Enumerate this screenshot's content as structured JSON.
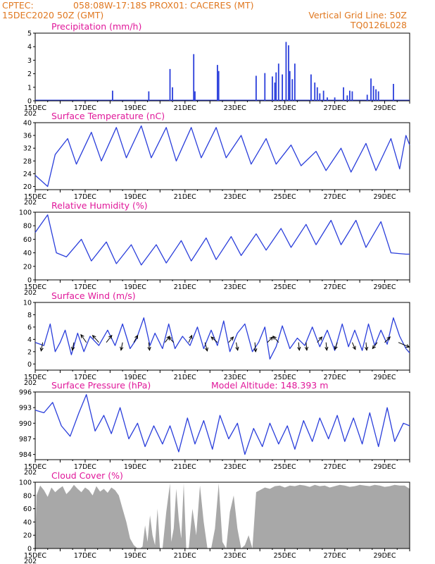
{
  "header": {
    "source": "CPTEC:",
    "location": "058:08W-17:18S   PROX01: CACERES (MT)",
    "run_date": "15DEC2020 50Z (GMT)",
    "grid_note": "Vertical Grid Line: 50Z",
    "product_code": "TQ0126L028"
  },
  "time_axis": {
    "labels": [
      "15DEC",
      "17DEC",
      "19DEC",
      "21DEC",
      "23DEC",
      "25DEC",
      "27DEC",
      "29DEC"
    ],
    "label_days": [
      0,
      2,
      4,
      6,
      8,
      10,
      12,
      14
    ],
    "start_day": 0,
    "end_day": 15,
    "year_fragment": "202"
  },
  "colors": {
    "series_line": "#2a3edb",
    "bar": "#2a3edb",
    "cloud_fill": "#a8a8a8",
    "header_text": "#e07820",
    "panel_title": "#e0189a",
    "axis": "#000000"
  },
  "chart_data": [
    {
      "id": "precipitation",
      "type": "bar",
      "title": "Precipitation (mm/h)",
      "ylim": [
        0,
        5
      ],
      "yticks": [
        0,
        1,
        2,
        3,
        4,
        5
      ],
      "bars": [
        [
          3.1,
          0.75
        ],
        [
          4.55,
          0.7
        ],
        [
          5.4,
          2.35
        ],
        [
          5.5,
          1.0
        ],
        [
          6.35,
          3.45
        ],
        [
          6.4,
          0.7
        ],
        [
          7.3,
          2.65
        ],
        [
          7.35,
          2.2
        ],
        [
          8.85,
          1.85
        ],
        [
          9.2,
          2.05
        ],
        [
          9.5,
          1.8
        ],
        [
          9.6,
          1.35
        ],
        [
          9.65,
          2.1
        ],
        [
          9.75,
          2.75
        ],
        [
          9.9,
          1.95
        ],
        [
          10.05,
          4.35
        ],
        [
          10.15,
          4.1
        ],
        [
          10.2,
          2.2
        ],
        [
          10.3,
          1.6
        ],
        [
          10.4,
          2.75
        ],
        [
          11.05,
          1.95
        ],
        [
          11.2,
          1.35
        ],
        [
          11.3,
          1.0
        ],
        [
          11.4,
          0.55
        ],
        [
          11.55,
          0.75
        ],
        [
          11.7,
          0.25
        ],
        [
          12.0,
          0.25
        ],
        [
          12.35,
          1.0
        ],
        [
          12.5,
          0.4
        ],
        [
          12.6,
          0.75
        ],
        [
          12.7,
          0.7
        ],
        [
          13.3,
          0.45
        ],
        [
          13.45,
          1.65
        ],
        [
          13.55,
          1.1
        ],
        [
          13.65,
          0.85
        ],
        [
          13.75,
          0.7
        ],
        [
          14.35,
          1.25
        ]
      ]
    },
    {
      "id": "temperature",
      "type": "line",
      "title": "Surface Temperature (nC)",
      "ylim": [
        19,
        40
      ],
      "yticks": [
        20,
        24,
        28,
        32,
        36,
        40
      ],
      "x": [
        0,
        0.5,
        0.8,
        1.3,
        1.65,
        2.25,
        2.65,
        3.25,
        3.65,
        4.25,
        4.65,
        5.25,
        5.65,
        6.25,
        6.65,
        7.25,
        7.65,
        8.25,
        8.65,
        9.25,
        9.65,
        10.25,
        10.65,
        11.25,
        11.65,
        12.25,
        12.65,
        13.25,
        13.65,
        14.25,
        14.6,
        14.85,
        15
      ],
      "y": [
        23.5,
        20.0,
        30.0,
        35.0,
        27.0,
        37.0,
        28.0,
        38.5,
        29.0,
        39.0,
        29.0,
        38.5,
        28.0,
        38.5,
        29.0,
        38.5,
        29.0,
        36.0,
        27.0,
        35.0,
        27.0,
        33.0,
        26.5,
        31.0,
        25.0,
        32.0,
        24.5,
        33.5,
        25.0,
        35.0,
        25.5,
        36.0,
        33.0
      ]
    },
    {
      "id": "humidity",
      "type": "line",
      "title": "Relative Humidity (%)",
      "ylim": [
        0,
        100
      ],
      "yticks": [
        0,
        20,
        40,
        60,
        80,
        100
      ],
      "x": [
        0,
        0.5,
        0.85,
        1.25,
        1.85,
        2.25,
        2.85,
        3.25,
        3.85,
        4.25,
        4.85,
        5.25,
        5.85,
        6.25,
        6.85,
        7.25,
        7.85,
        8.25,
        8.85,
        9.25,
        9.85,
        10.25,
        10.85,
        11.25,
        11.85,
        12.25,
        12.85,
        13.25,
        13.85,
        14.25,
        14.85,
        15
      ],
      "y": [
        70,
        96,
        40,
        34,
        60,
        28,
        56,
        24,
        52,
        22,
        52,
        25,
        58,
        28,
        62,
        30,
        64,
        36,
        68,
        44,
        76,
        48,
        82,
        52,
        88,
        52,
        88,
        48,
        86,
        40,
        38,
        38
      ]
    },
    {
      "id": "wind",
      "type": "line",
      "title": "Surface Wind (m/s)",
      "ylim": [
        -1,
        10
      ],
      "yticks": [
        0,
        2,
        4,
        6,
        8,
        10
      ],
      "x": [
        0,
        0.35,
        0.6,
        0.8,
        1.0,
        1.2,
        1.45,
        1.7,
        1.95,
        2.2,
        2.55,
        2.9,
        3.2,
        3.5,
        3.8,
        4.05,
        4.35,
        4.6,
        4.8,
        5.1,
        5.35,
        5.6,
        5.9,
        6.2,
        6.5,
        6.75,
        7.05,
        7.3,
        7.55,
        7.8,
        8.1,
        8.4,
        8.7,
        8.95,
        9.2,
        9.4,
        9.65,
        9.9,
        10.2,
        10.5,
        10.8,
        11.1,
        11.4,
        11.7,
        12.0,
        12.3,
        12.55,
        12.8,
        13.1,
        13.35,
        13.6,
        13.85,
        14.1,
        14.35,
        14.6,
        14.85,
        15
      ],
      "y": [
        3.5,
        3.0,
        6.5,
        2.0,
        3.5,
        5.5,
        1.5,
        5.0,
        2.0,
        4.5,
        3.0,
        5.5,
        3.0,
        6.5,
        2.5,
        4.0,
        7.5,
        3.0,
        5.0,
        2.5,
        6.5,
        2.5,
        4.5,
        3.0,
        6.0,
        2.5,
        5.5,
        3.0,
        7.0,
        2.0,
        5.0,
        6.5,
        2.0,
        3.5,
        6.0,
        0.8,
        2.8,
        6.2,
        2.5,
        4.2,
        3.0,
        6.0,
        2.8,
        5.5,
        2.2,
        6.5,
        2.8,
        5.5,
        2.2,
        6.5,
        3.0,
        5.5,
        3.2,
        7.5,
        4.5,
        2.5,
        1.8
      ],
      "vectors": [
        [
          0.3,
          -0.1,
          -0.55
        ],
        [
          1.55,
          -0.1,
          -0.5
        ],
        [
          2.05,
          -0.35,
          0.5
        ],
        [
          2.55,
          -0.4,
          0.45
        ],
        [
          2.85,
          0.35,
          0.45
        ],
        [
          3.5,
          -0.1,
          -0.5
        ],
        [
          3.95,
          0.25,
          0.45
        ],
        [
          4.55,
          0.05,
          -0.5
        ],
        [
          5.2,
          0.3,
          0.4
        ],
        [
          5.55,
          -0.35,
          0.35
        ],
        [
          6.15,
          0.2,
          0.45
        ],
        [
          6.8,
          0.15,
          -0.55
        ],
        [
          7.3,
          -0.4,
          0.35
        ],
        [
          7.75,
          0.3,
          0.35
        ],
        [
          8.05,
          0.1,
          -0.5
        ],
        [
          8.8,
          0.05,
          -0.6
        ],
        [
          9.3,
          0.35,
          0.35
        ],
        [
          9.75,
          -0.35,
          0.4
        ],
        [
          10.55,
          0.05,
          -0.5
        ],
        [
          10.85,
          0.05,
          -0.5
        ],
        [
          11.3,
          0.3,
          0.35
        ],
        [
          11.65,
          0.05,
          -0.5
        ],
        [
          12.1,
          -0.15,
          -0.45
        ],
        [
          12.7,
          0.2,
          -0.45
        ],
        [
          13.25,
          0.05,
          -0.5
        ],
        [
          13.7,
          -0.3,
          -0.4
        ],
        [
          14.0,
          0.35,
          0.35
        ],
        [
          14.55,
          0.7,
          -0.3
        ]
      ]
    },
    {
      "id": "pressure",
      "type": "line",
      "title": "Surface Pressure (hPa)",
      "extra_label": "Model Altitude: 148.393  m",
      "ylim": [
        983,
        996
      ],
      "yticks": [
        984,
        987,
        990,
        993,
        996
      ],
      "x": [
        0,
        0.35,
        0.7,
        1.05,
        1.4,
        1.75,
        2.05,
        2.4,
        2.75,
        3.05,
        3.4,
        3.75,
        4.1,
        4.4,
        4.75,
        5.1,
        5.4,
        5.75,
        6.1,
        6.4,
        6.75,
        7.1,
        7.4,
        7.75,
        8.1,
        8.4,
        8.75,
        9.1,
        9.4,
        9.75,
        10.1,
        10.4,
        10.75,
        11.1,
        11.4,
        11.75,
        12.1,
        12.4,
        12.75,
        13.1,
        13.4,
        13.75,
        14.1,
        14.4,
        14.75,
        15
      ],
      "y": [
        992.5,
        992.0,
        994.0,
        989.5,
        987.5,
        992.0,
        995.5,
        988.5,
        991.5,
        988.0,
        993.0,
        987.0,
        990.0,
        985.5,
        989.5,
        986.0,
        989.5,
        984.5,
        991.0,
        986.0,
        990.5,
        985.0,
        991.5,
        987.0,
        990.0,
        984.0,
        989.0,
        985.5,
        990.0,
        986.0,
        989.5,
        985.0,
        990.5,
        986.5,
        991.0,
        987.0,
        991.5,
        986.5,
        991.0,
        986.0,
        992.0,
        985.5,
        993.0,
        986.5,
        990.0,
        989.5
      ]
    },
    {
      "id": "cloud",
      "type": "area",
      "title": "Cloud Cover (%)",
      "ylim": [
        0,
        100
      ],
      "yticks": [
        0,
        20,
        40,
        60,
        80,
        100
      ],
      "x": [
        0,
        0.05,
        0.2,
        0.35,
        0.5,
        0.65,
        0.8,
        0.95,
        1.1,
        1.25,
        1.4,
        1.55,
        1.7,
        1.85,
        2.0,
        2.15,
        2.3,
        2.45,
        2.6,
        2.75,
        2.9,
        3.05,
        3.2,
        3.35,
        3.5,
        3.65,
        3.8,
        3.95,
        4.1,
        4.2,
        4.3,
        4.4,
        4.5,
        4.6,
        4.7,
        4.8,
        4.9,
        5.0,
        5.1,
        5.25,
        5.4,
        5.45,
        5.55,
        5.65,
        5.75,
        5.85,
        5.95,
        6.05,
        6.15,
        6.3,
        6.45,
        6.6,
        6.75,
        6.9,
        7.05,
        7.2,
        7.35,
        7.5,
        7.65,
        7.8,
        7.95,
        8.1,
        8.25,
        8.4,
        8.55,
        8.7,
        8.85,
        9.0,
        9.2,
        9.4,
        9.6,
        9.8,
        10.0,
        10.2,
        10.4,
        10.6,
        10.8,
        11.0,
        11.2,
        11.4,
        11.6,
        11.8,
        12.0,
        12.2,
        12.4,
        12.6,
        12.8,
        13.0,
        13.2,
        13.4,
        13.6,
        13.8,
        14.0,
        14.2,
        14.4,
        14.6,
        14.8,
        15
      ],
      "y": [
        0,
        80,
        95,
        88,
        78,
        92,
        85,
        90,
        94,
        82,
        88,
        96,
        90,
        85,
        92,
        88,
        80,
        94,
        86,
        90,
        84,
        92,
        88,
        80,
        60,
        40,
        15,
        5,
        0,
        0,
        3,
        35,
        10,
        50,
        20,
        5,
        60,
        0,
        0,
        55,
        98,
        10,
        30,
        90,
        45,
        15,
        98,
        0,
        0,
        60,
        20,
        95,
        40,
        0,
        0,
        30,
        98,
        10,
        0,
        55,
        80,
        30,
        0,
        5,
        20,
        0,
        85,
        88,
        92,
        90,
        94,
        95,
        92,
        95,
        94,
        96,
        95,
        93,
        96,
        94,
        95,
        92,
        94,
        96,
        95,
        93,
        94,
        96,
        95,
        94,
        96,
        95,
        93,
        94,
        96,
        95,
        95,
        90
      ]
    }
  ]
}
